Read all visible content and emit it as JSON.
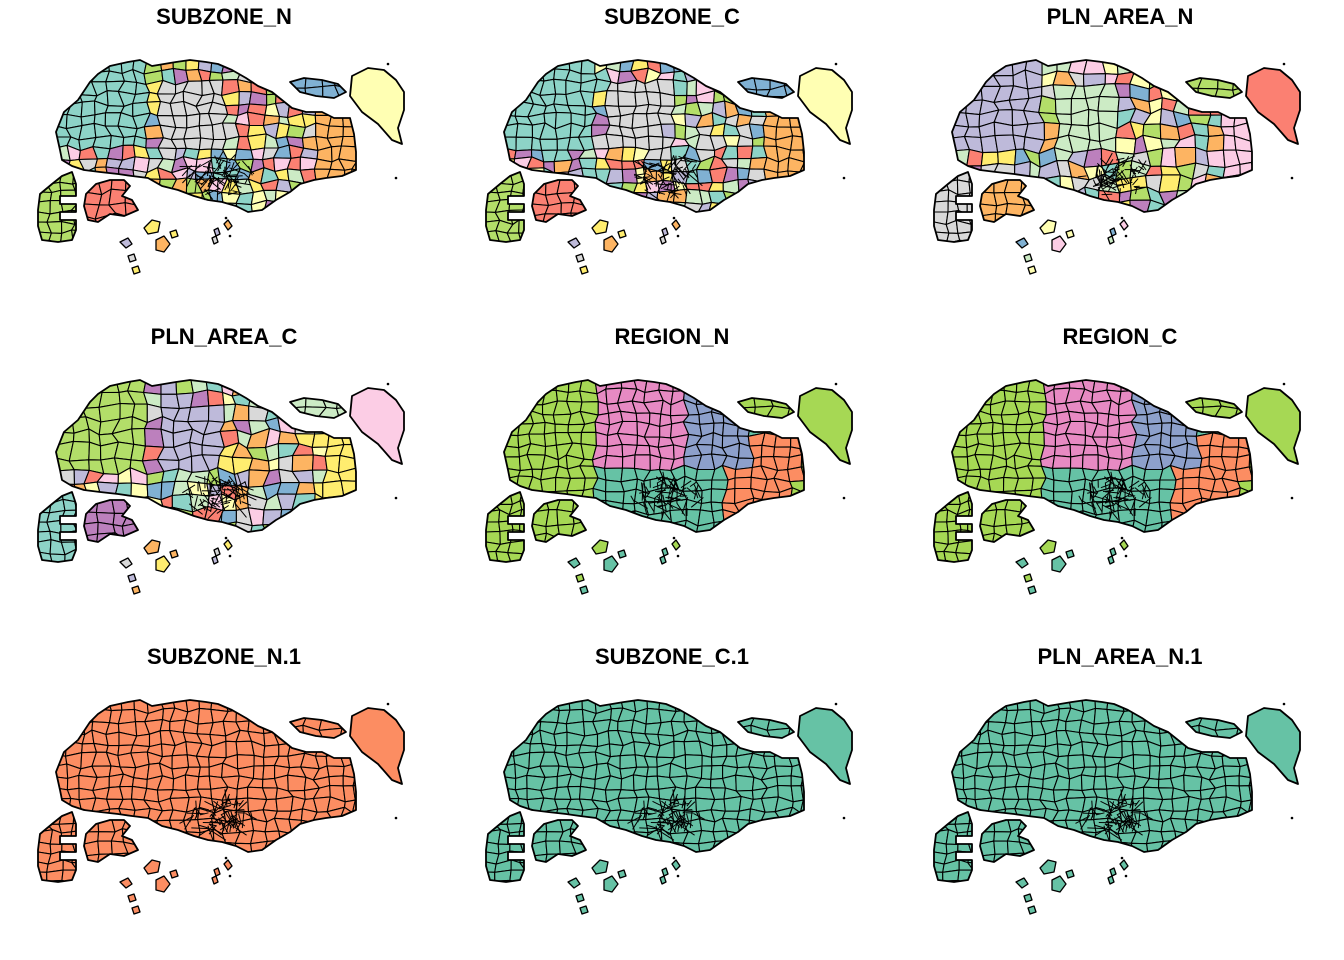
{
  "figure": {
    "rows": 3,
    "cols": 3
  },
  "palettes": {
    "set3": [
      "#8dd3c7",
      "#ffffb3",
      "#bebada",
      "#fb8072",
      "#80b1d3",
      "#fdb462",
      "#b3de69",
      "#fccde5",
      "#d9d9d9",
      "#bc80bd",
      "#ccebc5",
      "#ffed6f"
    ],
    "set2": [
      "#66c2a5",
      "#fc8d62",
      "#8da0cb",
      "#e78ac3",
      "#a6d854",
      "#ffd92f",
      "#e5c494",
      "#b3b3b3"
    ],
    "set1_style": [
      "#66c2a5",
      "#fc8d62",
      "#8da0cb",
      "#e78ac3",
      "#a6d854"
    ]
  },
  "colors": {
    "border": "#000000",
    "region_north": "#e78ac3",
    "region_northeast": "#8da0cb",
    "region_east": "#fc8d62",
    "region_west": "#a6d854",
    "region_central": "#66c2a5",
    "single_orange": "#fc8d62",
    "single_teal": "#66c2a5"
  },
  "panels": [
    {
      "title": "SUBZONE_N",
      "mode": "categorical",
      "palette": "set3",
      "seed": 11,
      "density": "fine"
    },
    {
      "title": "SUBZONE_C",
      "mode": "categorical",
      "palette": "set3",
      "seed": 23,
      "density": "fine"
    },
    {
      "title": "PLN_AREA_N",
      "mode": "categorical",
      "palette": "set3",
      "seed": 37,
      "density": "area"
    },
    {
      "title": "PLN_AREA_C",
      "mode": "categorical",
      "palette": "set3",
      "seed": 41,
      "density": "area"
    },
    {
      "title": "REGION_N",
      "mode": "region",
      "palette": "set2",
      "seed": 5,
      "density": "fine"
    },
    {
      "title": "REGION_C",
      "mode": "region",
      "palette": "set2",
      "seed": 5,
      "density": "fine"
    },
    {
      "title": "SUBZONE_N.1",
      "mode": "single",
      "fill": "#fc8d62",
      "seed": 7,
      "density": "fine"
    },
    {
      "title": "SUBZONE_C.1",
      "mode": "single",
      "fill": "#66c2a5",
      "seed": 7,
      "density": "fine"
    },
    {
      "title": "PLN_AREA_N.1",
      "mode": "single",
      "fill": "#66c2a5",
      "seed": 7,
      "density": "fine"
    }
  ]
}
